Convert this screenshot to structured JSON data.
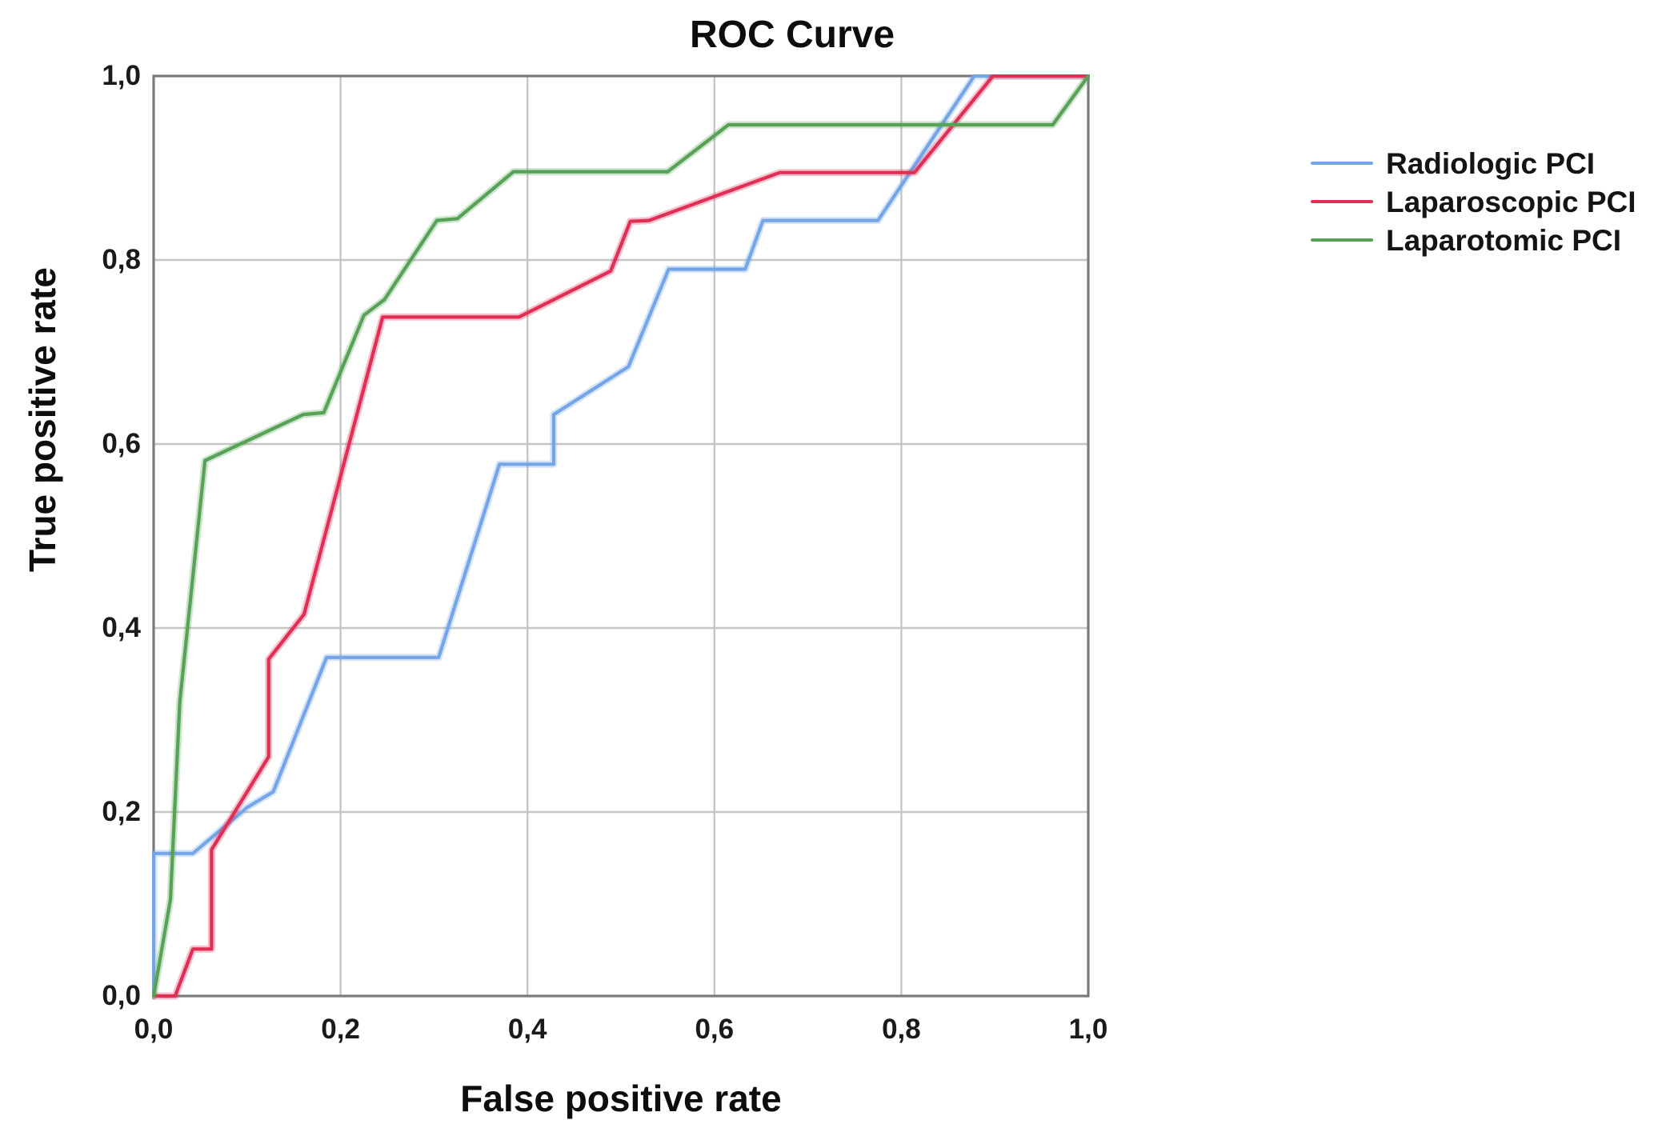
{
  "title": "ROC Curve",
  "x_axis": {
    "label": "False positive rate",
    "ticks": [
      "0,0",
      "0,2",
      "0,4",
      "0,6",
      "0,8",
      "1,0"
    ]
  },
  "y_axis": {
    "label": "True positive rate",
    "ticks": [
      "0,0",
      "0,2",
      "0,4",
      "0,6",
      "0,8",
      "1,0"
    ]
  },
  "legend": {
    "position": "right",
    "items": [
      {
        "label": "Radiologic PCI",
        "color": "#74A5E8"
      },
      {
        "label": "Laparoscopic PCI",
        "color": "#E02E55"
      },
      {
        "label": "Laparotomic PCI",
        "color": "#57A257"
      }
    ]
  },
  "colors": {
    "grid": "#c6c6c6",
    "frame": "#7b7b7b",
    "text": "#0d0d0d"
  },
  "chart_data": {
    "type": "line",
    "subtype": "roc-step-curves",
    "title": "ROC Curve",
    "xlabel": "False positive rate",
    "ylabel": "True positive rate",
    "xlim": [
      0,
      1
    ],
    "ylim": [
      0,
      1
    ],
    "tick_interval": 0.2,
    "decimal_separator": ",",
    "grid": true,
    "legend_position": "right",
    "series": [
      {
        "name": "Radiologic PCI",
        "color": "#74A5E8",
        "points": [
          [
            0,
            0
          ],
          [
            0,
            0.155
          ],
          [
            0.042,
            0.155
          ],
          [
            0.1,
            0.205
          ],
          [
            0.128,
            0.222
          ],
          [
            0.185,
            0.368
          ],
          [
            0.305,
            0.368
          ],
          [
            0.37,
            0.578
          ],
          [
            0.428,
            0.578
          ],
          [
            0.428,
            0.632
          ],
          [
            0.508,
            0.684
          ],
          [
            0.551,
            0.79
          ],
          [
            0.633,
            0.79
          ],
          [
            0.652,
            0.843
          ],
          [
            0.775,
            0.843
          ],
          [
            0.878,
            1
          ],
          [
            1,
            1
          ]
        ]
      },
      {
        "name": "Laparoscopic PCI",
        "color": "#E02E55",
        "points": [
          [
            0,
            0
          ],
          [
            0.023,
            0
          ],
          [
            0.042,
            0.051
          ],
          [
            0.062,
            0.051
          ],
          [
            0.062,
            0.159
          ],
          [
            0.123,
            0.26
          ],
          [
            0.123,
            0.366
          ],
          [
            0.161,
            0.415
          ],
          [
            0.245,
            0.738
          ],
          [
            0.391,
            0.738
          ],
          [
            0.489,
            0.788
          ],
          [
            0.51,
            0.842
          ],
          [
            0.53,
            0.843
          ],
          [
            0.67,
            0.895
          ],
          [
            0.814,
            0.895
          ],
          [
            0.898,
            1
          ],
          [
            1,
            1
          ]
        ]
      },
      {
        "name": "Laparotomic PCI",
        "color": "#57A257",
        "points": [
          [
            0,
            0
          ],
          [
            0.018,
            0.105
          ],
          [
            0.028,
            0.32
          ],
          [
            0.055,
            0.582
          ],
          [
            0.16,
            0.632
          ],
          [
            0.182,
            0.634
          ],
          [
            0.225,
            0.74
          ],
          [
            0.247,
            0.757
          ],
          [
            0.303,
            0.843
          ],
          [
            0.325,
            0.845
          ],
          [
            0.385,
            0.896
          ],
          [
            0.55,
            0.896
          ],
          [
            0.615,
            0.947
          ],
          [
            0.962,
            0.947
          ],
          [
            1,
            1
          ]
        ]
      }
    ]
  }
}
